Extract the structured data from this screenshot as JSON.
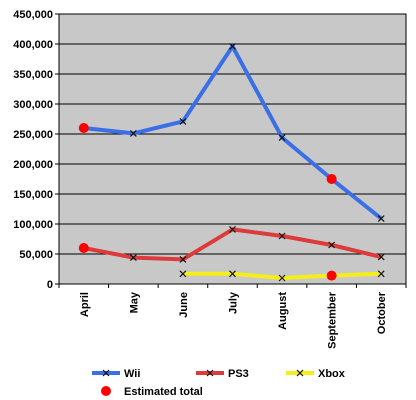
{
  "chart_data": {
    "type": "line",
    "categories": [
      "April",
      "May",
      "June",
      "July",
      "August",
      "September",
      "October"
    ],
    "ylim": [
      0,
      450000
    ],
    "ytick_labels": [
      "0",
      "50,000",
      "100,000",
      "150,000",
      "200,000",
      "250,000",
      "300,000",
      "350,000",
      "400,000",
      "450,000"
    ],
    "ytick_values": [
      0,
      50000,
      100000,
      150000,
      200000,
      250000,
      300000,
      350000,
      400000,
      450000
    ],
    "grid": true,
    "legend_position": "bottom",
    "series": [
      {
        "name": "Wii",
        "color": "#3b6fe6",
        "marker_color": "#111111",
        "values": [
          260000,
          251000,
          271000,
          396000,
          244000,
          175000,
          109000
        ],
        "estimated": [
          true,
          false,
          false,
          false,
          false,
          true,
          false
        ]
      },
      {
        "name": "PS3",
        "color": "#dc3b3b",
        "marker_color": "#111111",
        "values": [
          60000,
          44000,
          41000,
          91000,
          80000,
          65000,
          45000
        ],
        "estimated": [
          true,
          false,
          false,
          false,
          false,
          false,
          false
        ]
      },
      {
        "name": "Xbox",
        "color": "#f5ee1a",
        "marker_color": "#111111",
        "values": [
          null,
          null,
          17000,
          17000,
          10000,
          14000,
          17000
        ],
        "estimated": [
          false,
          false,
          false,
          false,
          false,
          true,
          false
        ]
      }
    ],
    "estimated_marker": {
      "label": "Estimated total",
      "color": "#ff0000"
    }
  }
}
